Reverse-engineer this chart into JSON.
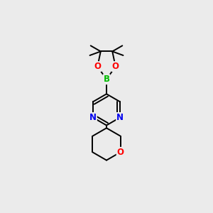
{
  "bg_color": "#ebebeb",
  "bond_color": "#000000",
  "bond_width": 1.4,
  "atom_colors": {
    "B": "#00bb00",
    "O": "#ff0000",
    "N": "#0000ee",
    "C": "#000000"
  }
}
